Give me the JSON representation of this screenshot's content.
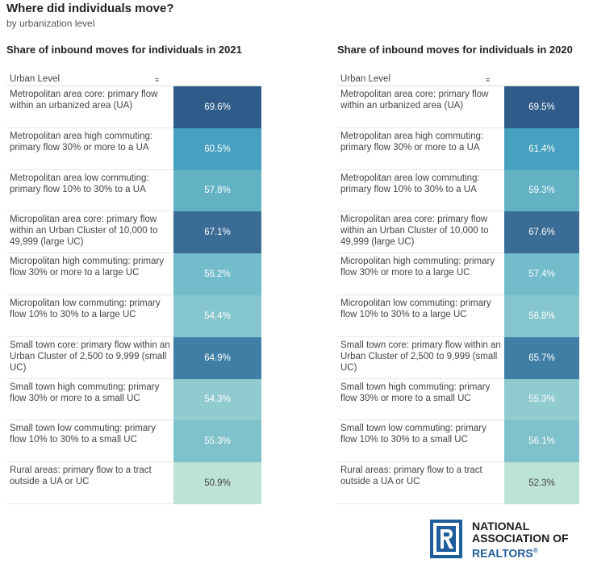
{
  "title": "Where did individuals move?",
  "subtitle": "by urbanization level",
  "chart_data": [
    {
      "type": "table",
      "title": "Share of inbound moves for individuals in 2021",
      "column_header": "Urban Level",
      "categories": [
        "Metropolitan area core: primary flow within an urbanized area (UA)",
        "Metropolitan area high commuting: primary flow 30% or more to a UA",
        "Metropolitan area low commuting: primary flow 10% to 30% to a UA",
        "Micropolitan area core: primary flow within an Urban Cluster of 10,000 to 49,999 (large UC)",
        "Micropolitan high commuting: primary flow 30% or more to a large UC",
        "Micropolitan low commuting: primary flow 10% to 30% to a large UC",
        "Small town core: primary flow within an Urban Cluster of 2,500 to 9,999 (small UC)",
        "Small town high commuting: primary flow 30% or more to a small UC",
        "Small town low commuting: primary flow 10% to 30% to a small UC",
        "Rural areas: primary flow to a tract outside a UA or UC"
      ],
      "values": [
        69.6,
        60.5,
        57.8,
        67.1,
        56.2,
        54.4,
        64.9,
        54.3,
        55.3,
        50.9
      ],
      "value_labels": [
        "69.6%",
        "60.5%",
        "57.8%",
        "67.1%",
        "56.2%",
        "54.4%",
        "64.9%",
        "54.3%",
        "55.3%",
        "50.9%"
      ]
    },
    {
      "type": "table",
      "title": "Share of inbound moves for individuals in 2020",
      "column_header": "Urban Level",
      "categories": [
        "Metropolitan area core: primary flow within an urbanized area (UA)",
        "Metropolitan area high commuting: primary flow 30% or more to a UA",
        "Metropolitan area low commuting: primary flow 10% to 30% to a UA",
        "Micropolitan area core: primary flow within an Urban Cluster of 10,000 to 49,999 (large UC)",
        "Micropolitan high commuting: primary flow 30% or more to a large UC",
        "Micropolitan low commuting: primary flow 10% to 30% to a large UC",
        "Small town core: primary flow within an Urban Cluster of 2,500 to 9,999 (small UC)",
        "Small town high commuting: primary flow 30% or more to a small UC",
        "Small town low commuting: primary flow 10% to 30% to a small UC",
        "Rural areas: primary flow to a tract outside a UA or UC"
      ],
      "values": [
        69.5,
        61.4,
        59.3,
        67.6,
        57.4,
        56.8,
        65.7,
        55.3,
        56.1,
        52.3
      ],
      "value_labels": [
        "69.5%",
        "61.4%",
        "59.3%",
        "67.6%",
        "57.4%",
        "56.8%",
        "65.7%",
        "55.3%",
        "56.1%",
        "52.3%"
      ]
    }
  ],
  "colors": [
    "#2e5b8a",
    "#45a1bf",
    "#62b2c4",
    "#3a6c96",
    "#72bccb",
    "#85c5cd",
    "#3f7fa6",
    "#8fcbcf",
    "#7fc2cc",
    "#bde3d8"
  ],
  "logo": {
    "icon": "realtor-r-logo-icon",
    "line1": "NATIONAL",
    "line2": "ASSOCIATION OF",
    "line3": "REALTORS",
    "mark": "®"
  }
}
